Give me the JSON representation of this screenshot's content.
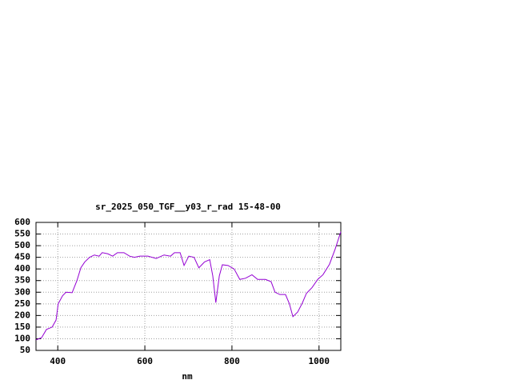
{
  "chart_data": {
    "type": "line",
    "title": "sr_2025_050_TGF__y03_r_rad 15-48-00",
    "x_label": "nm",
    "color": "#9400d3",
    "grid": true,
    "x": [
      350,
      363,
      374,
      387,
      396,
      401,
      411,
      419,
      433,
      444,
      453,
      462,
      473,
      484,
      495,
      502,
      515,
      526,
      537,
      552,
      565,
      576,
      589,
      607,
      626,
      644,
      659,
      668,
      681,
      690,
      701,
      713,
      724,
      737,
      749,
      756,
      763,
      771,
      778,
      791,
      805,
      818,
      831,
      846,
      859,
      877,
      890,
      899,
      910,
      923,
      932,
      940,
      951,
      962,
      971,
      984,
      997,
      1009,
      1024,
      1037,
      1050
    ],
    "values": [
      95,
      105,
      140,
      150,
      180,
      250,
      285,
      300,
      298,
      350,
      405,
      430,
      450,
      460,
      455,
      470,
      465,
      455,
      470,
      470,
      455,
      450,
      455,
      455,
      445,
      460,
      455,
      470,
      470,
      415,
      455,
      450,
      405,
      430,
      440,
      370,
      255,
      370,
      418,
      415,
      400,
      355,
      360,
      375,
      355,
      355,
      345,
      300,
      290,
      290,
      250,
      195,
      215,
      255,
      295,
      320,
      355,
      375,
      420,
      485,
      560
    ],
    "xlim": [
      350,
      1050
    ],
    "ylim": [
      50,
      600
    ],
    "xticks": [
      400,
      600,
      800,
      1000
    ],
    "yticks": [
      50,
      100,
      150,
      200,
      250,
      300,
      350,
      400,
      450,
      500,
      550,
      600
    ]
  }
}
